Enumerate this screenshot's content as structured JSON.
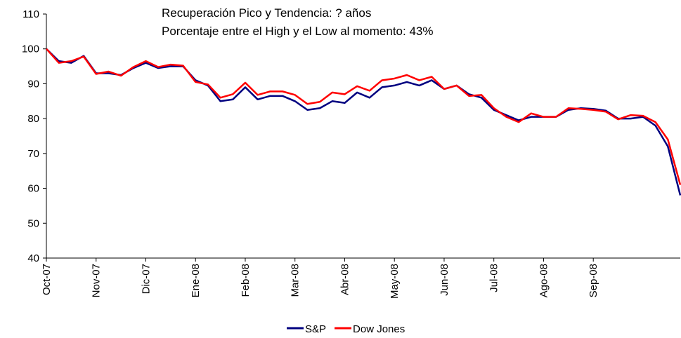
{
  "chart_data": {
    "type": "line",
    "title": "Recuperación Pico y Tendencia: ? años",
    "subtitle": "Porcentaje entre el High y el Low al momento: 43%",
    "categories": [
      "Oct-07",
      null,
      null,
      null,
      "Nov-07",
      null,
      null,
      null,
      "Dic-07",
      null,
      null,
      null,
      "Ene-08",
      null,
      null,
      null,
      "Feb-08",
      null,
      null,
      null,
      "Mar-08",
      null,
      null,
      null,
      "Abr-08",
      null,
      null,
      null,
      "May-08",
      null,
      null,
      null,
      "Jun-08",
      null,
      null,
      null,
      "Jul-08",
      null,
      null,
      null,
      "Ago-08",
      null,
      null,
      null,
      "Sep-08",
      null,
      null,
      null,
      null,
      null,
      null,
      null
    ],
    "series": [
      {
        "name": "S&P",
        "color": "#000080",
        "values": [
          100,
          96.5,
          96,
          98,
          93,
          93,
          92.5,
          94.5,
          96,
          94.5,
          95,
          95,
          91,
          89.5,
          85,
          85.5,
          89,
          85.5,
          86.5,
          86.5,
          85,
          82.5,
          83,
          85,
          84.5,
          87.5,
          86,
          89,
          89.5,
          90.5,
          89.5,
          91,
          88.5,
          89.5,
          87,
          86,
          82.5,
          81,
          79.5,
          80.5,
          80.5,
          80.5,
          82.5,
          83,
          82.8,
          82.3,
          80,
          80,
          80.5,
          78,
          72,
          58
        ]
      },
      {
        "name": "Dow Jones",
        "color": "#ff0000",
        "values": [
          100,
          96,
          96.5,
          97.8,
          92.8,
          93.5,
          92.3,
          94.8,
          96.5,
          94.8,
          95.5,
          95.2,
          90.5,
          89.8,
          86,
          87,
          90.3,
          86.8,
          87.8,
          87.8,
          86.8,
          84.2,
          84.8,
          87.5,
          87,
          89.3,
          88,
          91,
          91.5,
          92.5,
          91,
          92,
          88.5,
          89.5,
          86.5,
          86.8,
          83,
          80.5,
          79,
          81.5,
          80.5,
          80.5,
          83,
          82.8,
          82.5,
          82,
          79.8,
          81,
          80.8,
          79,
          74,
          61
        ]
      }
    ],
    "ylim": [
      40,
      110
    ],
    "yticks": [
      40,
      50,
      60,
      70,
      80,
      90,
      100,
      110
    ],
    "legend": "bottom"
  }
}
